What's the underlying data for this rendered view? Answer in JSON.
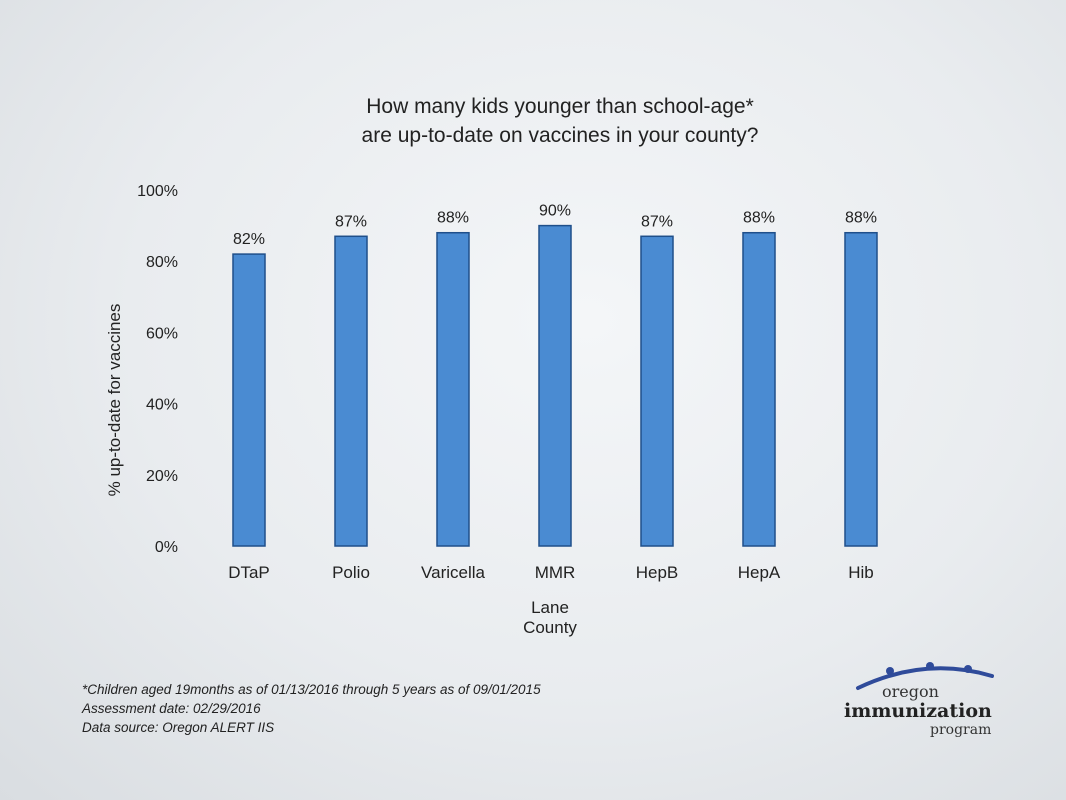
{
  "chart_data": {
    "type": "bar",
    "title": [
      "How many kids younger than school-age*",
      "are up-to-date on vaccines in your county?"
    ],
    "ylabel": "% up-to-date for vaccines",
    "xlabel": [
      "Lane",
      "County"
    ],
    "categories": [
      "DTaP",
      "Polio",
      "Varicella",
      "MMR",
      "HepB",
      "HepA",
      "Hib"
    ],
    "values": [
      82,
      87,
      88,
      90,
      87,
      88,
      88
    ],
    "value_labels": [
      "82%",
      "87%",
      "88%",
      "90%",
      "87%",
      "88%",
      "88%"
    ],
    "ylim": [
      0,
      100
    ],
    "yticks": [
      0,
      20,
      40,
      60,
      80,
      100
    ],
    "ytick_labels": [
      "0%",
      "20%",
      "40%",
      "60%",
      "80%",
      "100%"
    ],
    "grid": false,
    "bar_color": "#4a8bd2",
    "bar_edge_color": "#1f4f8a"
  },
  "footnotes": {
    "line1": "*Children aged 19months as of 01/13/2016 through 5 years as of 09/01/2015",
    "line2": "Assessment date: 02/29/2016",
    "line3": "Data source: Oregon ALERT IIS"
  },
  "logo": {
    "oregon": "oregon",
    "immunization": "immunization",
    "program": "program",
    "color": "#2f4b9a"
  }
}
